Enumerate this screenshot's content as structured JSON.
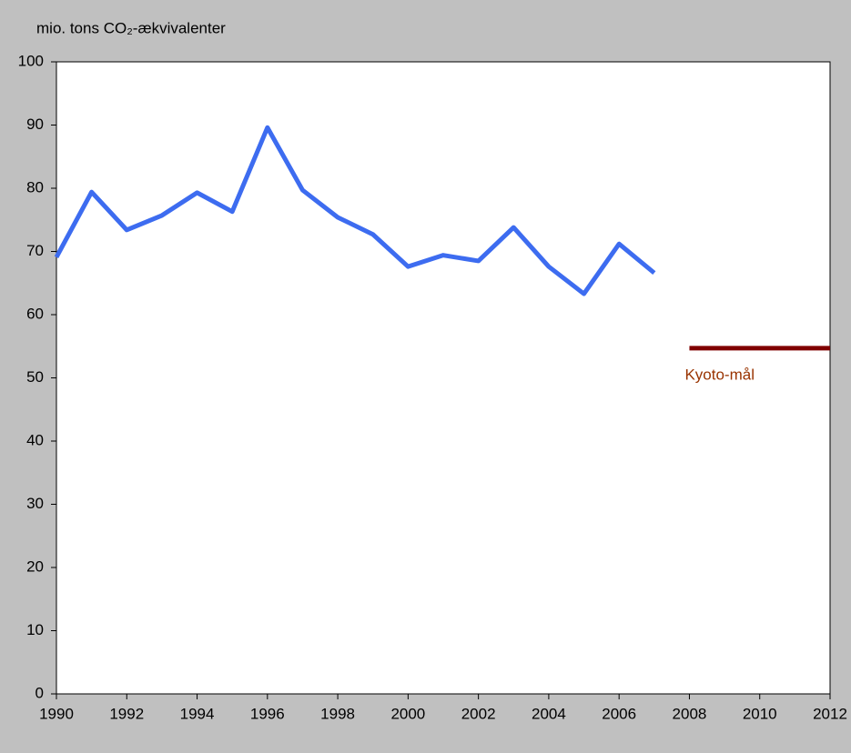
{
  "chart_data": {
    "type": "line",
    "title": "mio. tons CO₂-ækvivalenter",
    "xlim": [
      1990,
      2012
    ],
    "xticks": [
      1990,
      1992,
      1994,
      1996,
      1998,
      2000,
      2002,
      2004,
      2006,
      2008,
      2010,
      2012
    ],
    "ylim": [
      0,
      100
    ],
    "yticks": [
      0,
      10,
      20,
      30,
      40,
      50,
      60,
      70,
      80,
      90,
      100
    ],
    "series": [
      {
        "color": "#3d6cf0",
        "x": [
          1990,
          1991,
          1992,
          1993,
          1994,
          1995,
          1996,
          1997,
          1998,
          1999,
          2000,
          2001,
          2002,
          2003,
          2004,
          2005,
          2006,
          2007
        ],
        "values": [
          69.1,
          79.4,
          73.4,
          75.7,
          79.3,
          76.3,
          89.6,
          79.7,
          75.4,
          72.7,
          67.6,
          69.4,
          68.5,
          73.8,
          67.6,
          63.3,
          71.2,
          66.6
        ]
      },
      {
        "name": "Kyoto-mål",
        "color": "#800000",
        "label_color": "#993300",
        "x": [
          2008,
          2012
        ],
        "values": [
          54.7,
          54.7
        ]
      }
    ]
  }
}
